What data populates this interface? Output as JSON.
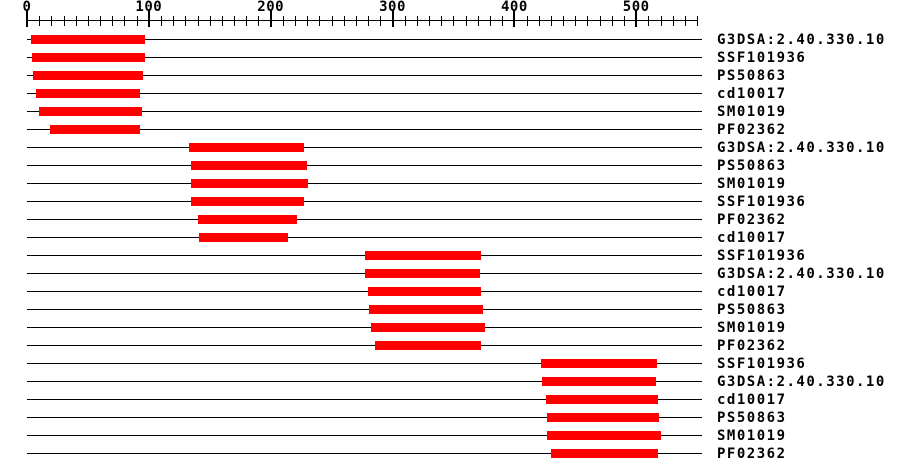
{
  "chart_data": {
    "type": "bar",
    "subtype": "horizontal-span-tracks",
    "title": "",
    "xlabel": "",
    "ylabel": "",
    "grid": false,
    "legend_position": "none",
    "axis": {
      "min": 0,
      "max": 554,
      "ruler_end": 550,
      "minor_tick_step": 10,
      "major_tick_step": 100,
      "tick_labels": [
        {
          "value": 0,
          "label": "0"
        },
        {
          "value": 100,
          "label": "100"
        },
        {
          "value": 200,
          "label": "200"
        },
        {
          "value": 300,
          "label": "300"
        },
        {
          "value": 400,
          "label": "400"
        },
        {
          "value": 500,
          "label": "500"
        }
      ]
    },
    "rows": [
      {
        "label": "G3DSA:2.40.330.10",
        "start": 3,
        "end": 97
      },
      {
        "label": "SSF101936",
        "start": 4,
        "end": 97
      },
      {
        "label": "PS50863",
        "start": 5,
        "end": 95
      },
      {
        "label": "cd10017",
        "start": 7,
        "end": 93
      },
      {
        "label": "SM01019",
        "start": 10,
        "end": 94
      },
      {
        "label": "PF02362",
        "start": 19,
        "end": 93
      },
      {
        "label": "G3DSA:2.40.330.10",
        "start": 133,
        "end": 227
      },
      {
        "label": "PS50863",
        "start": 135,
        "end": 230
      },
      {
        "label": "SM01019",
        "start": 135,
        "end": 231
      },
      {
        "label": "SSF101936",
        "start": 135,
        "end": 227
      },
      {
        "label": "PF02362",
        "start": 140,
        "end": 222
      },
      {
        "label": "cd10017",
        "start": 141,
        "end": 214
      },
      {
        "label": "SSF101936",
        "start": 277,
        "end": 373
      },
      {
        "label": "G3DSA:2.40.330.10",
        "start": 277,
        "end": 372
      },
      {
        "label": "cd10017",
        "start": 280,
        "end": 373
      },
      {
        "label": "PS50863",
        "start": 281,
        "end": 374
      },
      {
        "label": "SM01019",
        "start": 282,
        "end": 376
      },
      {
        "label": "PF02362",
        "start": 286,
        "end": 373
      },
      {
        "label": "SSF101936",
        "start": 422,
        "end": 517
      },
      {
        "label": "G3DSA:2.40.330.10",
        "start": 423,
        "end": 516
      },
      {
        "label": "cd10017",
        "start": 426,
        "end": 518
      },
      {
        "label": "PS50863",
        "start": 427,
        "end": 519
      },
      {
        "label": "SM01019",
        "start": 427,
        "end": 520
      },
      {
        "label": "PF02362",
        "start": 430,
        "end": 518
      }
    ]
  },
  "colors": {
    "bar": "#ff0000",
    "axis": "#000000",
    "text": "#000000",
    "background": "#ffffff"
  }
}
